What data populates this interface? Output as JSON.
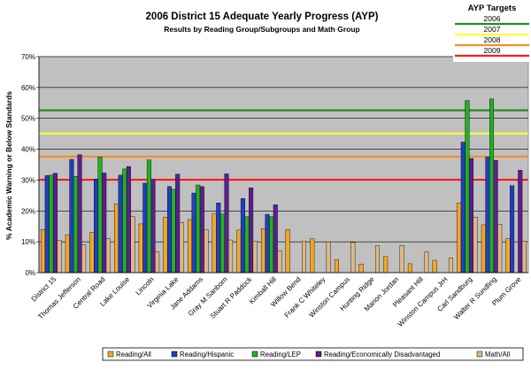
{
  "chart_data": {
    "type": "bar",
    "title": "2006 District 15 Adequate Yearly Progress (AYP)",
    "subtitle": "Results by Reading Group/Subgroups and Math Group",
    "xlabel": "",
    "ylabel": "% Academic Warning or Below Standards",
    "ylim": [
      0,
      70
    ],
    "yticks": [
      "0%",
      "10%",
      "20%",
      "30%",
      "40%",
      "50%",
      "60%",
      "70%"
    ],
    "grid": true,
    "legend_position": "bottom",
    "categories": [
      "District 15",
      "Thomas Jefferson",
      "Central Road",
      "Lake Louise",
      "Lincoln",
      "Virginia Lake",
      "Jane Addams",
      "Gray M Sanborn",
      "Stuart R Paddock",
      "Kimball Hill",
      "Willow Bend",
      "Frank C Whiteley",
      "Winston Campus",
      "Hunting Ridge",
      "Marion Jordan",
      "Pleasant Hill",
      "Winston Campus JrH",
      "Carl Sandburg",
      "Walter R Sundling",
      "Plum Grove"
    ],
    "series": [
      {
        "name": "Reading/All",
        "color": "#f5a623",
        "values": [
          14,
          12.3,
          13.1,
          22.2,
          15.8,
          18,
          17.2,
          19,
          13.8,
          14.3,
          14,
          11,
          4.2,
          2.8,
          5.2,
          2.9,
          4,
          22.6,
          15.5,
          11
        ]
      },
      {
        "name": "Reading/Hispanic",
        "color": "#1f3fbf",
        "values": [
          31.5,
          36.7,
          30.3,
          31.6,
          29,
          27.9,
          25.8,
          22.6,
          24,
          18.9,
          null,
          null,
          null,
          null,
          null,
          null,
          null,
          42.3,
          37.5,
          28.2
        ]
      },
      {
        "name": "Reading/LEP",
        "color": "#22b022",
        "values": [
          31.6,
          31.2,
          37.5,
          33.6,
          36.5,
          27,
          28.4,
          19,
          18.2,
          18.2,
          null,
          null,
          null,
          null,
          null,
          null,
          null,
          55.8,
          56.3,
          null
        ]
      },
      {
        "name": "Reading/Economically Disadvantaged",
        "color": "#5b1f8f",
        "values": [
          32.2,
          38.2,
          32.3,
          34.4,
          30.2,
          31.9,
          27.9,
          32,
          27.5,
          22,
          null,
          null,
          null,
          null,
          null,
          null,
          null,
          37,
          36.4,
          33.2
        ]
      },
      {
        "name": "Math/All",
        "color": "#deb887",
        "values": [
          10.5,
          9,
          11,
          18.2,
          6.8,
          16.3,
          14,
          10.6,
          10.2,
          7.1,
          10.2,
          10,
          9.8,
          8.8,
          8.8,
          6.7,
          4.8,
          18,
          15.7,
          10.2
        ]
      }
    ],
    "extra_bars": [
      {
        "category": "Plum Grove",
        "series": "Reading/All",
        "value": 8.5
      },
      {
        "category": "Plum Grove",
        "series": "Math/All",
        "value": 7.8
      }
    ],
    "reference_lines": {
      "title": "AYP Targets",
      "items": [
        {
          "label": "2006",
          "value": 52.6,
          "color": "#228b22"
        },
        {
          "label": "2007",
          "value": 45.1,
          "color": "#ffff33"
        },
        {
          "label": "2008",
          "value": 37.6,
          "color": "#ff8c1a"
        },
        {
          "label": "2009",
          "value": 30.1,
          "color": "#ff1a1a"
        }
      ]
    }
  }
}
